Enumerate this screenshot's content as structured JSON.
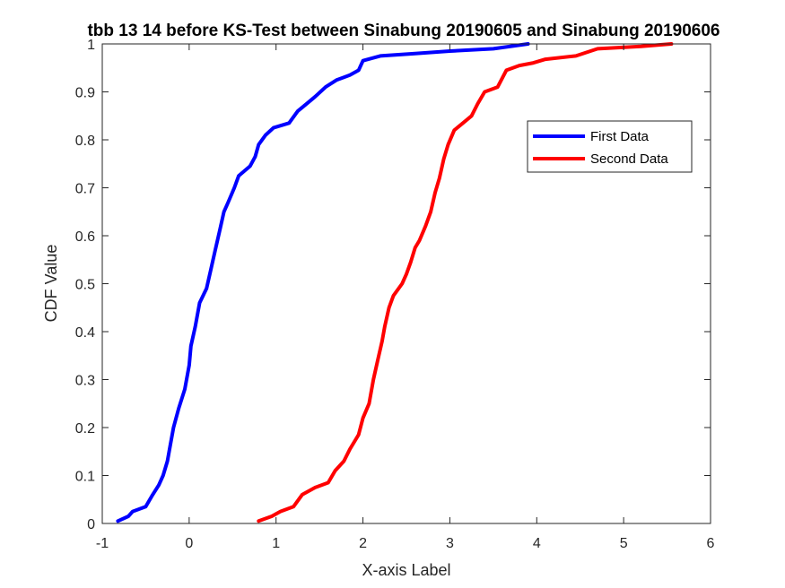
{
  "chart_data": {
    "type": "line",
    "title": "tbb 13 14 before KS-Test between Sinabung 20190605 and Sinabung 20190606",
    "xlabel": "X-axis Label",
    "ylabel": "CDF Value",
    "xlim": [
      -1,
      6
    ],
    "ylim": [
      0,
      1
    ],
    "xticks": [
      "-1",
      "0",
      "1",
      "2",
      "3",
      "4",
      "5",
      "6"
    ],
    "yticks": [
      "0",
      "0.1",
      "0.2",
      "0.3",
      "0.4",
      "0.5",
      "0.6",
      "0.7",
      "0.8",
      "0.9",
      "1"
    ],
    "grid": false,
    "legend_position": "top-right",
    "series": [
      {
        "name": "First Data",
        "color": "#0000ff",
        "points": [
          [
            -0.82,
            0.005
          ],
          [
            -0.7,
            0.015
          ],
          [
            -0.65,
            0.025
          ],
          [
            -0.5,
            0.035
          ],
          [
            -0.42,
            0.06
          ],
          [
            -0.35,
            0.08
          ],
          [
            -0.3,
            0.1
          ],
          [
            -0.25,
            0.13
          ],
          [
            -0.22,
            0.16
          ],
          [
            -0.18,
            0.2
          ],
          [
            -0.12,
            0.24
          ],
          [
            -0.05,
            0.28
          ],
          [
            0.0,
            0.33
          ],
          [
            0.02,
            0.37
          ],
          [
            0.07,
            0.41
          ],
          [
            0.12,
            0.46
          ],
          [
            0.2,
            0.49
          ],
          [
            0.25,
            0.53
          ],
          [
            0.3,
            0.57
          ],
          [
            0.35,
            0.61
          ],
          [
            0.4,
            0.65
          ],
          [
            0.45,
            0.67
          ],
          [
            0.52,
            0.7
          ],
          [
            0.57,
            0.725
          ],
          [
            0.7,
            0.745
          ],
          [
            0.76,
            0.765
          ],
          [
            0.8,
            0.79
          ],
          [
            0.88,
            0.81
          ],
          [
            0.97,
            0.825
          ],
          [
            1.15,
            0.835
          ],
          [
            1.25,
            0.86
          ],
          [
            1.35,
            0.875
          ],
          [
            1.45,
            0.89
          ],
          [
            1.57,
            0.91
          ],
          [
            1.7,
            0.925
          ],
          [
            1.85,
            0.935
          ],
          [
            1.95,
            0.945
          ],
          [
            2.0,
            0.965
          ],
          [
            2.2,
            0.975
          ],
          [
            2.6,
            0.98
          ],
          [
            3.0,
            0.985
          ],
          [
            3.5,
            0.99
          ],
          [
            3.9,
            1.0
          ]
        ]
      },
      {
        "name": "Second Data",
        "color": "#ff0000",
        "points": [
          [
            0.8,
            0.005
          ],
          [
            0.95,
            0.015
          ],
          [
            1.05,
            0.025
          ],
          [
            1.2,
            0.035
          ],
          [
            1.3,
            0.06
          ],
          [
            1.45,
            0.075
          ],
          [
            1.6,
            0.085
          ],
          [
            1.68,
            0.11
          ],
          [
            1.78,
            0.13
          ],
          [
            1.85,
            0.155
          ],
          [
            1.95,
            0.185
          ],
          [
            2.0,
            0.22
          ],
          [
            2.07,
            0.25
          ],
          [
            2.12,
            0.3
          ],
          [
            2.17,
            0.34
          ],
          [
            2.22,
            0.38
          ],
          [
            2.25,
            0.41
          ],
          [
            2.3,
            0.45
          ],
          [
            2.35,
            0.475
          ],
          [
            2.45,
            0.5
          ],
          [
            2.5,
            0.52
          ],
          [
            2.55,
            0.545
          ],
          [
            2.6,
            0.575
          ],
          [
            2.65,
            0.59
          ],
          [
            2.72,
            0.62
          ],
          [
            2.78,
            0.65
          ],
          [
            2.83,
            0.69
          ],
          [
            2.88,
            0.72
          ],
          [
            2.93,
            0.76
          ],
          [
            2.98,
            0.79
          ],
          [
            3.05,
            0.82
          ],
          [
            3.15,
            0.835
          ],
          [
            3.25,
            0.85
          ],
          [
            3.32,
            0.875
          ],
          [
            3.4,
            0.9
          ],
          [
            3.55,
            0.91
          ],
          [
            3.65,
            0.945
          ],
          [
            3.8,
            0.955
          ],
          [
            3.95,
            0.96
          ],
          [
            4.1,
            0.968
          ],
          [
            4.45,
            0.975
          ],
          [
            4.7,
            0.99
          ],
          [
            5.2,
            0.995
          ],
          [
            5.55,
            1.0
          ]
        ]
      }
    ]
  }
}
